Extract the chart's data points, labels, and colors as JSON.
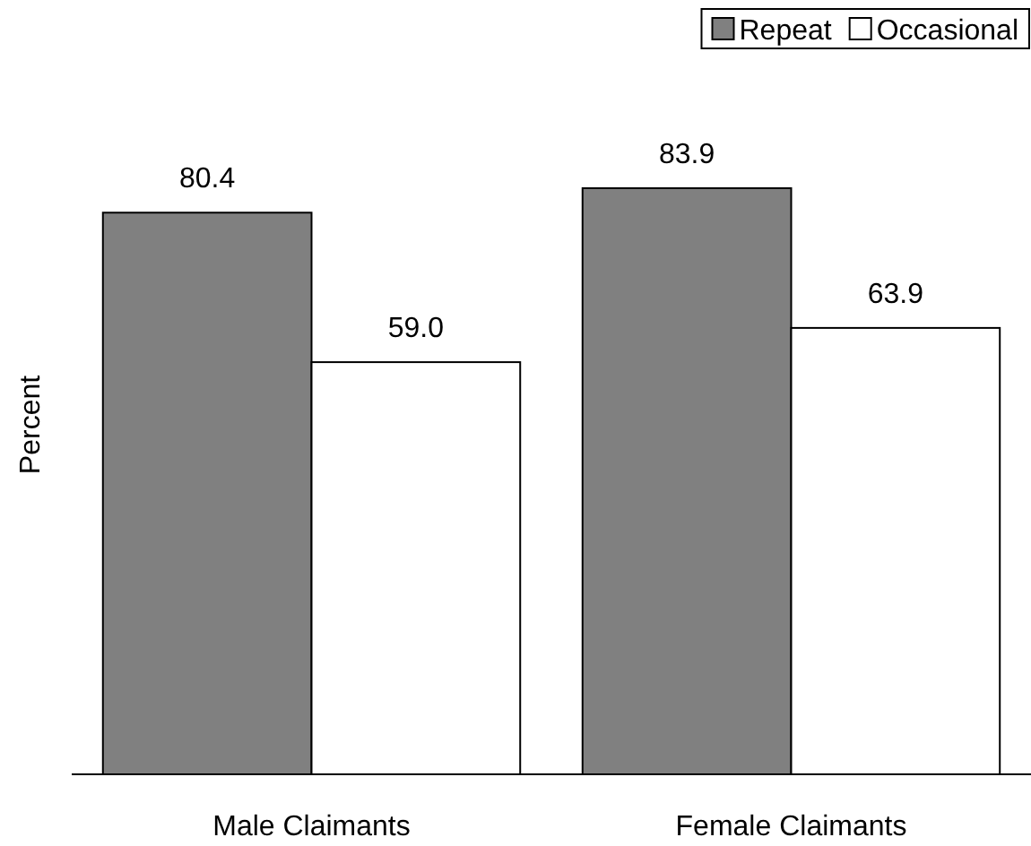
{
  "chart_data": {
    "type": "bar",
    "ylabel": "Percent",
    "categories": [
      "Male Claimants",
      "Female Claimants"
    ],
    "series": [
      {
        "name": "Repeat",
        "color": "#808080",
        "values": [
          80.4,
          83.9
        ],
        "value_labels": [
          "80.4",
          "83.9"
        ]
      },
      {
        "name": "Occasional",
        "color": "#ffffff",
        "values": [
          59.0,
          63.9
        ],
        "value_labels": [
          "59.0",
          "63.9"
        ]
      }
    ],
    "legend": "top right",
    "tick_labels": "x"
  }
}
